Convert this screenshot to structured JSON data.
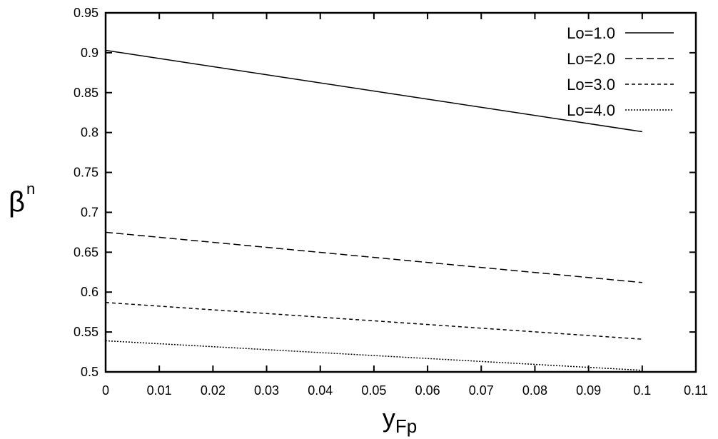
{
  "chart_data": {
    "type": "line",
    "xlabel": "y",
    "xlabel_sub": "Fp",
    "ylabel": "β",
    "ylabel_sub": "n",
    "xlim": [
      0,
      0.11
    ],
    "ylim": [
      0.5,
      0.95
    ],
    "xticks": [
      "0",
      "0.01",
      "0.02",
      "0.03",
      "0.04",
      "0.05",
      "0.06",
      "0.07",
      "0.08",
      "0.09",
      "0.1",
      "0.11"
    ],
    "yticks": [
      "0.5",
      "0.55",
      "0.6",
      "0.65",
      "0.7",
      "0.75",
      "0.8",
      "0.85",
      "0.9",
      "0.95"
    ],
    "grid": false,
    "legend_position": "top-right",
    "series": [
      {
        "name": "Lo=1.0",
        "dash": "solid",
        "x": [
          0,
          0.1
        ],
        "y": [
          0.903,
          0.801
        ]
      },
      {
        "name": "Lo=2.0",
        "dash": "dashed",
        "x": [
          0,
          0.1
        ],
        "y": [
          0.675,
          0.612
        ]
      },
      {
        "name": "Lo=3.0",
        "dash": "short-dashed",
        "x": [
          0,
          0.1
        ],
        "y": [
          0.587,
          0.541
        ]
      },
      {
        "name": "Lo=4.0",
        "dash": "dotted",
        "x": [
          0,
          0.1
        ],
        "y": [
          0.539,
          0.502
        ]
      }
    ]
  }
}
